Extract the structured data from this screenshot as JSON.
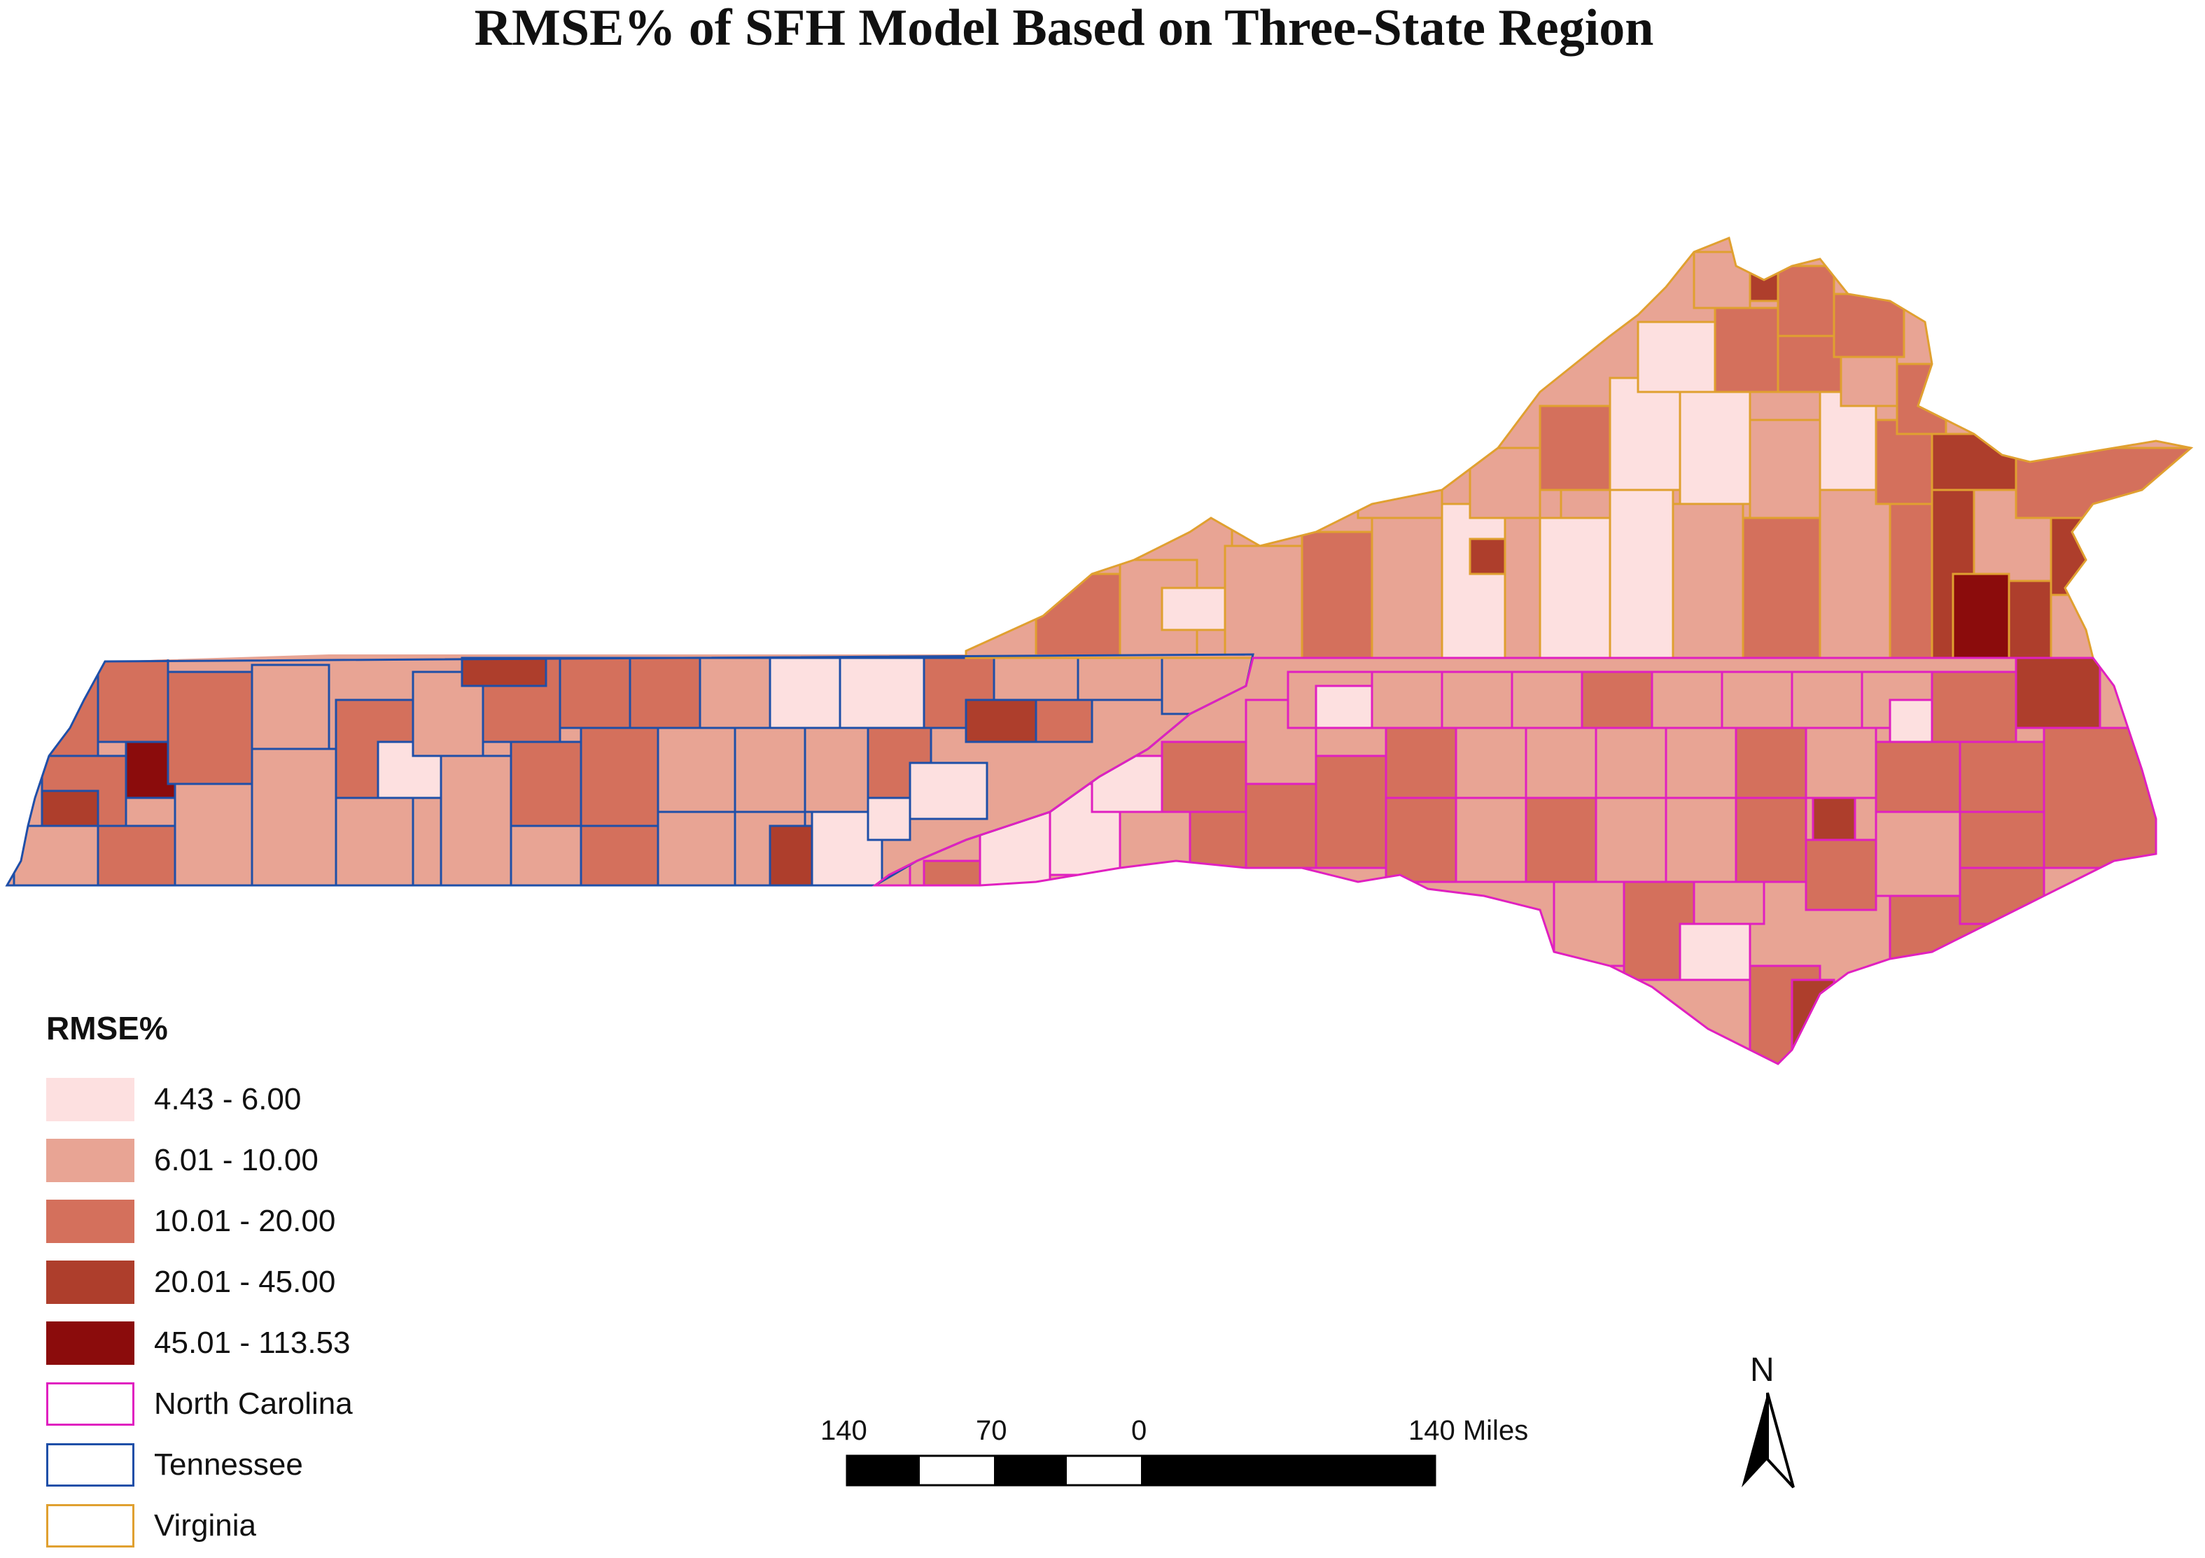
{
  "title": "RMSE% of SFH Model Based on Three-State Region",
  "legend": {
    "title": "RMSE%",
    "classes": [
      {
        "label": "4.43 - 6.00",
        "color": "#fde0e0"
      },
      {
        "label": "6.01 - 10.00",
        "color": "#e8a494"
      },
      {
        "label": "10.01 - 20.00",
        "color": "#d4705c"
      },
      {
        "label": "20.01 - 45.00",
        "color": "#ae3e2c"
      },
      {
        "label": "45.01 - 113.53",
        "color": "#8b0c0c"
      }
    ],
    "boundaries": [
      {
        "label": "North Carolina",
        "color": "#e020c0"
      },
      {
        "label": "Tennessee",
        "color": "#1f4fa8"
      },
      {
        "label": "Virginia",
        "color": "#e0a030"
      }
    ]
  },
  "scale_bar": {
    "labels": [
      "140",
      "70",
      "0",
      "140 Miles"
    ]
  },
  "north_arrow": {
    "label": "N",
    "icon": "north-arrow-icon"
  }
}
